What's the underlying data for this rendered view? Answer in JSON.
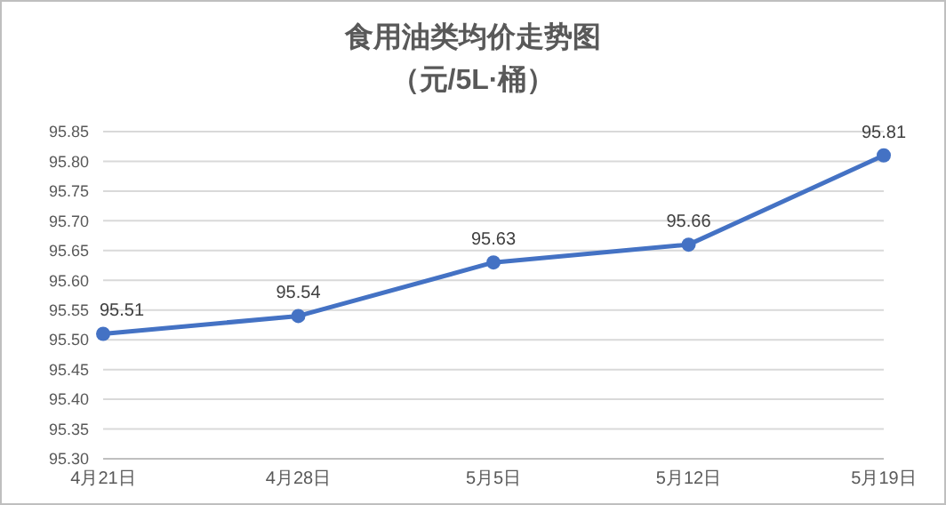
{
  "chart_data": {
    "type": "line",
    "title": "食用油类均价走势图",
    "subtitle": "（元/5L·桶）",
    "categories": [
      "4月21日",
      "4月28日",
      "5月5日",
      "5月12日",
      "5月19日"
    ],
    "series": [
      {
        "color": "#4472c4",
        "values": [
          95.51,
          95.54,
          95.63,
          95.66,
          95.81
        ]
      }
    ],
    "ylim": [
      95.3,
      95.85
    ],
    "yticks": [
      {
        "value": 95.3,
        "label": "95.30"
      },
      {
        "value": 95.35,
        "label": "95.35"
      },
      {
        "value": 95.4,
        "label": "95.40"
      },
      {
        "value": 95.45,
        "label": "95.45"
      },
      {
        "value": 95.5,
        "label": "95.50"
      },
      {
        "value": 95.55,
        "label": "95.55"
      },
      {
        "value": 95.6,
        "label": "95.60"
      },
      {
        "value": 95.65,
        "label": "95.65"
      },
      {
        "value": 95.7,
        "label": "95.70"
      },
      {
        "value": 95.75,
        "label": "95.75"
      },
      {
        "value": 95.8,
        "label": "95.80"
      },
      {
        "value": 95.85,
        "label": "95.85"
      }
    ],
    "grid": "y",
    "marker": "circle",
    "line_style": "solid",
    "data_labels": true
  }
}
